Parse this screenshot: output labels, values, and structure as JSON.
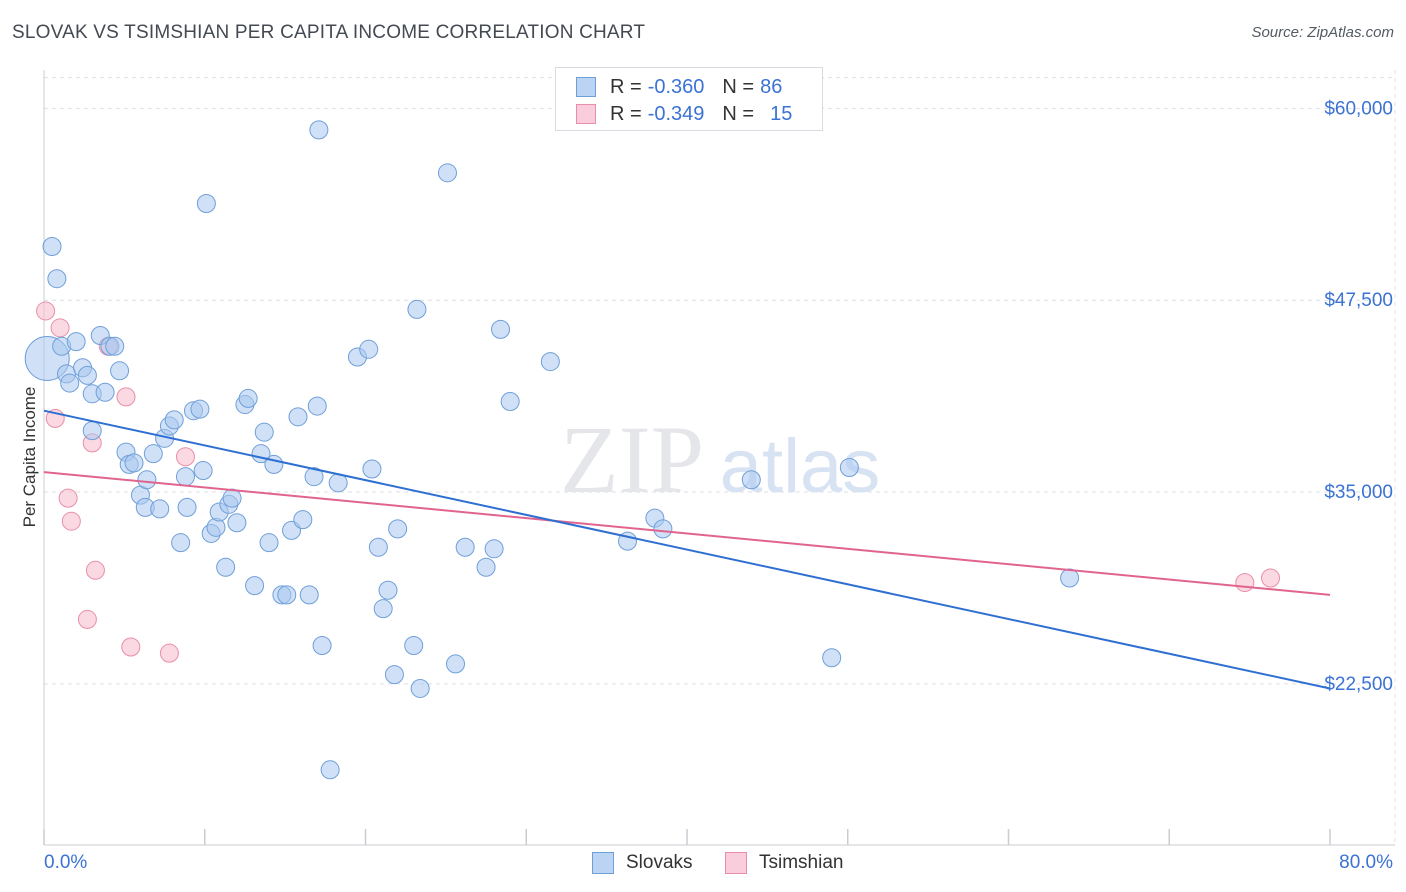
{
  "title": "SLOVAK VS TSIMSHIAN PER CAPITA INCOME CORRELATION CHART",
  "source": "Source: ZipAtlas.com",
  "watermark": {
    "zip": "ZIP",
    "atlas": "atlas"
  },
  "legend": {
    "rows": [
      {
        "r_label": "R =",
        "r_value": "-0.360",
        "n_label": "N =",
        "n_value": "86"
      },
      {
        "r_label": "R =",
        "r_value": "-0.349",
        "n_label": "N =",
        "n_value": "15"
      }
    ]
  },
  "bottom_legend": {
    "slovaks": "Slovaks",
    "tsimshian": "Tsimshian"
  },
  "colors": {
    "slovaks_fill": "#a9c8f0",
    "slovaks_stroke": "#6f9fd8",
    "slovaks_line": "#2f6fd2",
    "tsimshian_fill": "#f6bfd0",
    "tsimshian_stroke": "#e98ea8",
    "tsimshian_line": "#e0648e",
    "axis_text": "#3b72d4",
    "grid": "#dcdfe4"
  },
  "chart_data": {
    "type": "scatter",
    "title": "SLOVAK VS TSIMSHIAN PER CAPITA INCOME CORRELATION CHART",
    "xlabel": "",
    "ylabel": "Per Capita Income",
    "xlim": [
      0,
      80
    ],
    "ylim": [
      12000,
      62500
    ],
    "x_tick_labels": [
      "0.0%",
      "80.0%"
    ],
    "y_ticks": [
      22500,
      35000,
      47500,
      60000
    ],
    "y_tick_labels": [
      "$22,500",
      "$35,000",
      "$47,500",
      "$60,000"
    ],
    "grid": true,
    "series": [
      {
        "name": "Slovaks",
        "R": -0.36,
        "N": 86,
        "trend": {
          "x": [
            0,
            80
          ],
          "y": [
            40300,
            22200
          ]
        },
        "points": [
          {
            "x": 0.2,
            "y": 43700,
            "big": true
          },
          {
            "x": 0.5,
            "y": 51000
          },
          {
            "x": 0.8,
            "y": 48900
          },
          {
            "x": 1.1,
            "y": 44500
          },
          {
            "x": 1.4,
            "y": 42700
          },
          {
            "x": 1.6,
            "y": 42100
          },
          {
            "x": 2.0,
            "y": 44800
          },
          {
            "x": 2.4,
            "y": 43100
          },
          {
            "x": 2.7,
            "y": 42600
          },
          {
            "x": 3.0,
            "y": 41400
          },
          {
            "x": 3.5,
            "y": 45200
          },
          {
            "x": 3.8,
            "y": 41500
          },
          {
            "x": 4.1,
            "y": 44500
          },
          {
            "x": 4.4,
            "y": 44500
          },
          {
            "x": 4.7,
            "y": 42900
          },
          {
            "x": 3.0,
            "y": 39000
          },
          {
            "x": 5.1,
            "y": 37600
          },
          {
            "x": 5.3,
            "y": 36800
          },
          {
            "x": 5.6,
            "y": 36900
          },
          {
            "x": 6.0,
            "y": 34800
          },
          {
            "x": 6.4,
            "y": 35800
          },
          {
            "x": 6.3,
            "y": 34000
          },
          {
            "x": 6.8,
            "y": 37500
          },
          {
            "x": 7.2,
            "y": 33900
          },
          {
            "x": 7.5,
            "y": 38500
          },
          {
            "x": 7.8,
            "y": 39300
          },
          {
            "x": 8.1,
            "y": 39700
          },
          {
            "x": 8.5,
            "y": 31700
          },
          {
            "x": 8.8,
            "y": 36000
          },
          {
            "x": 8.9,
            "y": 34000
          },
          {
            "x": 9.3,
            "y": 40300
          },
          {
            "x": 9.7,
            "y": 40400
          },
          {
            "x": 9.9,
            "y": 36400
          },
          {
            "x": 10.1,
            "y": 53800
          },
          {
            "x": 10.4,
            "y": 32300
          },
          {
            "x": 10.7,
            "y": 32700
          },
          {
            "x": 10.9,
            "y": 33700
          },
          {
            "x": 11.3,
            "y": 30100
          },
          {
            "x": 11.5,
            "y": 34200
          },
          {
            "x": 11.7,
            "y": 34600
          },
          {
            "x": 12.0,
            "y": 33000
          },
          {
            "x": 12.5,
            "y": 40700
          },
          {
            "x": 12.7,
            "y": 41100
          },
          {
            "x": 13.1,
            "y": 28900
          },
          {
            "x": 13.5,
            "y": 37500
          },
          {
            "x": 13.7,
            "y": 38900
          },
          {
            "x": 14.0,
            "y": 31700
          },
          {
            "x": 14.3,
            "y": 36800
          },
          {
            "x": 14.8,
            "y": 28300
          },
          {
            "x": 15.1,
            "y": 28300
          },
          {
            "x": 15.4,
            "y": 32500
          },
          {
            "x": 15.8,
            "y": 39900
          },
          {
            "x": 16.1,
            "y": 33200
          },
          {
            "x": 16.5,
            "y": 28300
          },
          {
            "x": 16.8,
            "y": 36000
          },
          {
            "x": 17.0,
            "y": 40600
          },
          {
            "x": 17.1,
            "y": 58600
          },
          {
            "x": 17.3,
            "y": 25000
          },
          {
            "x": 17.8,
            "y": 16900
          },
          {
            "x": 18.3,
            "y": 35600
          },
          {
            "x": 19.5,
            "y": 43800
          },
          {
            "x": 20.2,
            "y": 44300
          },
          {
            "x": 20.4,
            "y": 36500
          },
          {
            "x": 20.8,
            "y": 31400
          },
          {
            "x": 21.1,
            "y": 27400
          },
          {
            "x": 21.4,
            "y": 28600
          },
          {
            "x": 21.8,
            "y": 23100
          },
          {
            "x": 22.0,
            "y": 32600
          },
          {
            "x": 23.0,
            "y": 25000
          },
          {
            "x": 23.2,
            "y": 46900
          },
          {
            "x": 23.4,
            "y": 22200
          },
          {
            "x": 25.1,
            "y": 55800
          },
          {
            "x": 25.6,
            "y": 23800
          },
          {
            "x": 26.2,
            "y": 31400
          },
          {
            "x": 27.5,
            "y": 30100
          },
          {
            "x": 28.0,
            "y": 31300
          },
          {
            "x": 28.4,
            "y": 45600
          },
          {
            "x": 29.0,
            "y": 40900
          },
          {
            "x": 31.5,
            "y": 43500
          },
          {
            "x": 36.3,
            "y": 31800
          },
          {
            "x": 38.0,
            "y": 33300
          },
          {
            "x": 38.5,
            "y": 32600
          },
          {
            "x": 44.0,
            "y": 35800
          },
          {
            "x": 49.0,
            "y": 24200
          },
          {
            "x": 50.1,
            "y": 36600
          },
          {
            "x": 63.8,
            "y": 29400
          }
        ]
      },
      {
        "name": "Tsimshian",
        "R": -0.349,
        "N": 15,
        "trend": {
          "x": [
            0,
            80
          ],
          "y": [
            36300,
            28300
          ]
        },
        "points": [
          {
            "x": 0.1,
            "y": 46800
          },
          {
            "x": 0.7,
            "y": 39800
          },
          {
            "x": 1.0,
            "y": 45700
          },
          {
            "x": 1.5,
            "y": 34600
          },
          {
            "x": 1.7,
            "y": 33100
          },
          {
            "x": 2.7,
            "y": 26700
          },
          {
            "x": 3.0,
            "y": 38200
          },
          {
            "x": 3.2,
            "y": 29900
          },
          {
            "x": 4.0,
            "y": 44500
          },
          {
            "x": 5.1,
            "y": 41200
          },
          {
            "x": 5.4,
            "y": 24900
          },
          {
            "x": 7.8,
            "y": 24500
          },
          {
            "x": 8.8,
            "y": 37300
          },
          {
            "x": 74.7,
            "y": 29100
          },
          {
            "x": 76.3,
            "y": 29400
          }
        ]
      }
    ]
  }
}
